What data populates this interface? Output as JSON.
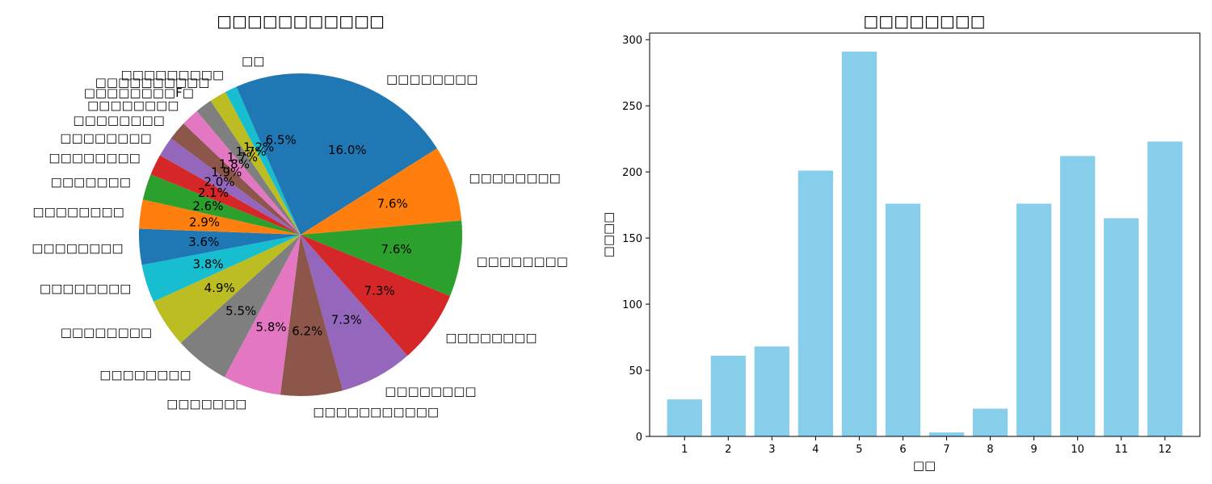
{
  "chart_data": [
    {
      "type": "pie",
      "title": "□□□□□□□□□□□",
      "start_angle_deg": 90,
      "direction": "clockwise",
      "slices": [
        {
          "label": "□□□□□□□□",
          "value": 16.0,
          "pct_label": "16.0%",
          "color": "#1f77b4"
        },
        {
          "label": "□□□□□□□□",
          "value": 7.6,
          "pct_label": "7.6%",
          "color": "#ff7f0e"
        },
        {
          "label": "□□□□□□□□",
          "value": 7.6,
          "pct_label": "7.6%",
          "color": "#2ca02c"
        },
        {
          "label": "□□□□□□□□",
          "value": 7.3,
          "pct_label": "7.3%",
          "color": "#d62728"
        },
        {
          "label": "□□□□□□□□",
          "value": 7.3,
          "pct_label": "7.3%",
          "color": "#9467bd"
        },
        {
          "label": "□□□□□□□□□□□",
          "value": 6.2,
          "pct_label": "6.2%",
          "color": "#8c564b"
        },
        {
          "label": "□□□□□□□",
          "value": 5.8,
          "pct_label": "5.8%",
          "color": "#e377c2"
        },
        {
          "label": "□□□□□□□□",
          "value": 5.5,
          "pct_label": "5.5%",
          "color": "#7f7f7f"
        },
        {
          "label": "□□□□□□□□",
          "value": 4.9,
          "pct_label": "4.9%",
          "color": "#bcbd22"
        },
        {
          "label": "□□□□□□□□",
          "value": 3.8,
          "pct_label": "3.8%",
          "color": "#17becf"
        },
        {
          "label": "□□□□□□□□",
          "value": 3.6,
          "pct_label": "3.6%",
          "color": "#1f77b4"
        },
        {
          "label": "□□□□□□□□",
          "value": 2.9,
          "pct_label": "2.9%",
          "color": "#ff7f0e"
        },
        {
          "label": "□□□□□□□",
          "value": 2.6,
          "pct_label": "2.6%",
          "color": "#2ca02c"
        },
        {
          "label": "□□□□□□□□",
          "value": 2.1,
          "pct_label": "2.1%",
          "color": "#d62728"
        },
        {
          "label": "□□□□□□□□",
          "value": 2.0,
          "pct_label": "2.0%",
          "color": "#9467bd"
        },
        {
          "label": "□□□□□□□□",
          "value": 1.9,
          "pct_label": "1.9%",
          "color": "#8c564b"
        },
        {
          "label": "□□□□□□□□",
          "value": 1.8,
          "pct_label": "1.8%",
          "color": "#e377c2"
        },
        {
          "label": "□□□□□□□□F□",
          "value": 1.7,
          "pct_label": "1.7%",
          "color": "#7f7f7f"
        },
        {
          "label": "□□□□□□□□□□",
          "value": 1.7,
          "pct_label": "1.7%",
          "color": "#bcbd22"
        },
        {
          "label": "□□□□□□□□□",
          "value": 1.2,
          "pct_label": "1.2%",
          "color": "#17becf"
        },
        {
          "label": "□□",
          "value": 6.5,
          "pct_label": "6.5%",
          "color": "#1f77b4"
        }
      ]
    },
    {
      "type": "bar",
      "title": "□□□□□□□□",
      "xlabel": "□□",
      "ylabel": "□□□□",
      "categories": [
        "1",
        "2",
        "3",
        "4",
        "5",
        "6",
        "7",
        "8",
        "9",
        "10",
        "11",
        "12"
      ],
      "values": [
        28,
        61,
        68,
        201,
        291,
        176,
        3,
        21,
        176,
        212,
        165,
        223
      ],
      "ylim": [
        0,
        305
      ],
      "yticks": [
        0,
        50,
        100,
        150,
        200,
        250,
        300
      ],
      "bar_color": "#87ceeb",
      "grid": false
    }
  ]
}
